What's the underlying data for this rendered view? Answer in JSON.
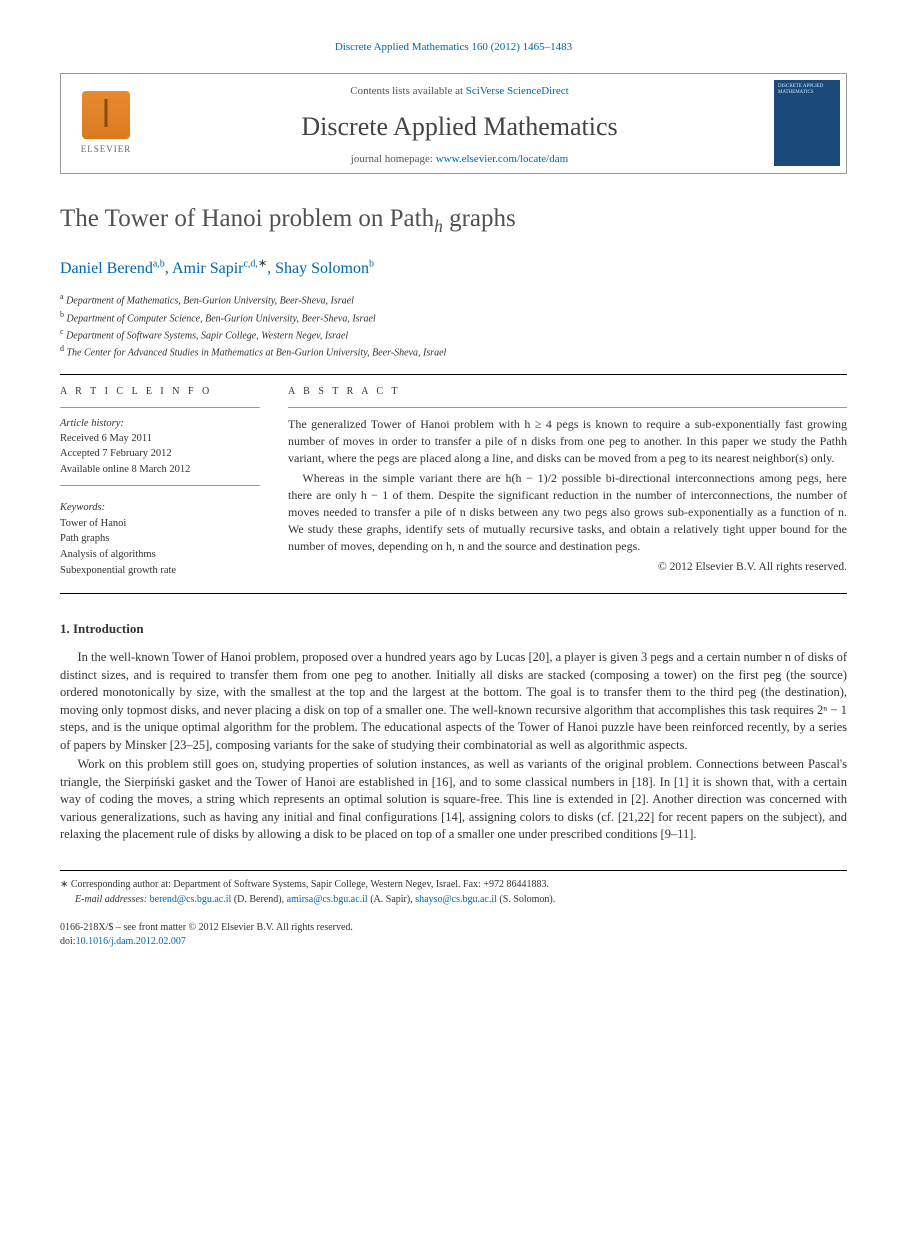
{
  "journal_ref": "Discrete Applied Mathematics 160 (2012) 1465–1483",
  "header": {
    "contents_prefix": "Contents lists available at ",
    "contents_link": "SciVerse ScienceDirect",
    "journal_name": "Discrete Applied Mathematics",
    "homepage_prefix": "journal homepage: ",
    "homepage_url": "www.elsevier.com/locate/dam",
    "publisher_label": "ELSEVIER",
    "cover_text": "DISCRETE APPLIED MATHEMATICS"
  },
  "title_pre": "The Tower of Hanoi problem on Path",
  "title_sub": "h",
  "title_post": " graphs",
  "authors": [
    {
      "name": "Daniel Berend",
      "marks": "a,b"
    },
    {
      "name": "Amir Sapir",
      "marks": "c,d,",
      "star": true
    },
    {
      "name": "Shay Solomon",
      "marks": "b"
    }
  ],
  "affiliations": [
    {
      "mark": "a",
      "text": "Department of Mathematics, Ben-Gurion University, Beer-Sheva, Israel"
    },
    {
      "mark": "b",
      "text": "Department of Computer Science, Ben-Gurion University, Beer-Sheva, Israel"
    },
    {
      "mark": "c",
      "text": "Department of Software Systems, Sapir College, Western Negev, Israel"
    },
    {
      "mark": "d",
      "text": "The Center for Advanced Studies in Mathematics at Ben-Gurion University, Beer-Sheva, Israel"
    }
  ],
  "info": {
    "heading": "A R T I C L E   I N F O",
    "history_label": "Article history:",
    "received": "Received 6 May 2011",
    "accepted": "Accepted 7 February 2012",
    "online": "Available online 8 March 2012",
    "keywords_label": "Keywords:",
    "keywords": [
      "Tower of Hanoi",
      "Path graphs",
      "Analysis of algorithms",
      "Subexponential growth rate"
    ]
  },
  "abstract": {
    "heading": "A B S T R A C T",
    "p1": "The generalized Tower of Hanoi problem with h ≥ 4 pegs is known to require a sub-exponentially fast growing number of moves in order to transfer a pile of n disks from one peg to another. In this paper we study the Pathh variant, where the pegs are placed along a line, and disks can be moved from a peg to its nearest neighbor(s) only.",
    "p2": "Whereas in the simple variant there are h(h − 1)/2 possible bi-directional interconnections among pegs, here there are only h − 1 of them. Despite the significant reduction in the number of interconnections, the number of moves needed to transfer a pile of n disks between any two pegs also grows sub-exponentially as a function of n. We study these graphs, identify sets of mutually recursive tasks, and obtain a relatively tight upper bound for the number of moves, depending on h, n and the source and destination pegs.",
    "copyright": "© 2012 Elsevier B.V. All rights reserved."
  },
  "section1": {
    "heading": "1. Introduction",
    "p1": "In the well-known Tower of Hanoi problem, proposed over a hundred years ago by Lucas [20], a player is given 3 pegs and a certain number n of disks of distinct sizes, and is required to transfer them from one peg to another. Initially all disks are stacked (composing a tower) on the first peg (the source) ordered monotonically by size, with the smallest at the top and the largest at the bottom. The goal is to transfer them to the third peg (the destination), moving only topmost disks, and never placing a disk on top of a smaller one. The well-known recursive algorithm that accomplishes this task requires 2ⁿ − 1 steps, and is the unique optimal algorithm for the problem. The educational aspects of the Tower of Hanoi puzzle have been reinforced recently, by a series of papers by Minsker [23–25], composing variants for the sake of studying their combinatorial as well as algorithmic aspects.",
    "p2": "Work on this problem still goes on, studying properties of solution instances, as well as variants of the original problem. Connections between Pascal's triangle, the Sierpiński gasket and the Tower of Hanoi are established in [16], and to some classical numbers in [18]. In [1] it is shown that, with a certain way of coding the moves, a string which represents an optimal solution is square-free. This line is extended in [2]. Another direction was concerned with various generalizations, such as having any initial and final configurations [14], assigning colors to disks (cf. [21,22] for recent papers on the subject), and relaxing the placement rule of disks by allowing a disk to be placed on top of a smaller one under prescribed conditions [9–11]."
  },
  "footnotes": {
    "corresponding": "Corresponding author at: Department of Software Systems, Sapir College, Western Negev, Israel. Fax: +972 86441883.",
    "email_label": "E-mail addresses: ",
    "emails": [
      {
        "addr": "berend@cs.bgu.ac.il",
        "who": "(D. Berend)"
      },
      {
        "addr": "amirsa@cs.bgu.ac.il",
        "who": "(A. Sapir)"
      },
      {
        "addr": "shayso@cs.bgu.ac.il",
        "who": "(S. Solomon)"
      }
    ]
  },
  "footer": {
    "line1": "0166-218X/$ – see front matter © 2012 Elsevier B.V. All rights reserved.",
    "doi_label": "doi:",
    "doi": "10.1016/j.dam.2012.02.007"
  },
  "colors": {
    "link": "#0066aa",
    "text": "#333333",
    "heading": "#515151",
    "elsevier_orange": "#e88b2e",
    "cover_bg": "#1a4a7a"
  }
}
